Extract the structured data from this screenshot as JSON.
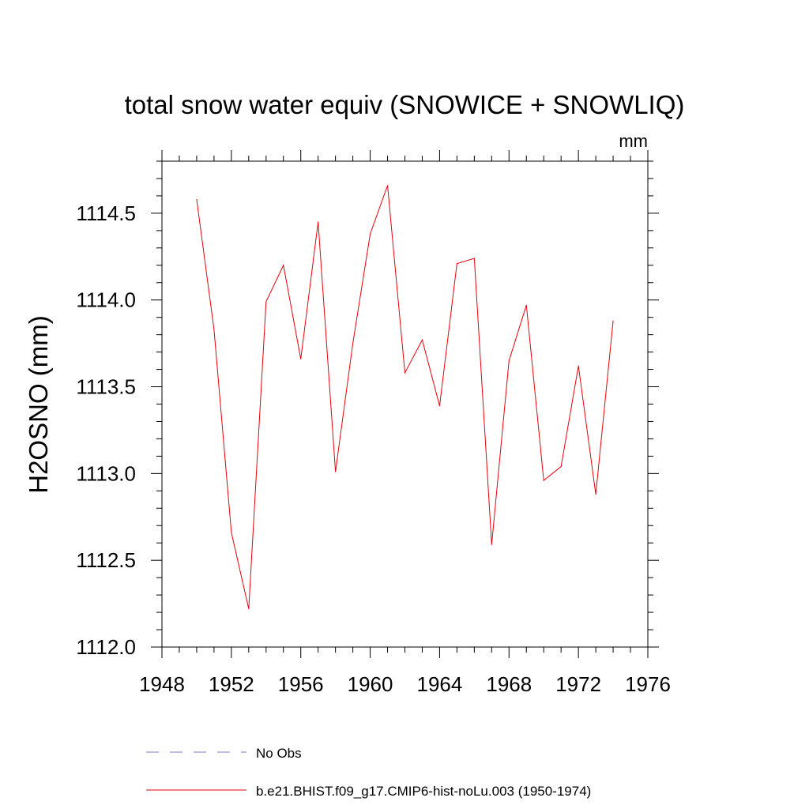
{
  "chart_data": {
    "type": "line",
    "title": "total snow water equiv (SNOWICE + SNOWLIQ)",
    "units": "mm",
    "ylabel": "H2OSNO  (mm)",
    "xlabel": "",
    "xlim": [
      1948,
      1976
    ],
    "ylim": [
      1112.0,
      1114.8
    ],
    "xticks": [
      1948,
      1952,
      1956,
      1960,
      1964,
      1968,
      1972,
      1976
    ],
    "yticks": [
      1112.0,
      1112.5,
      1113.0,
      1113.5,
      1114.0,
      1114.5
    ],
    "ytick_labels": [
      "1112.0",
      "1112.5",
      "1113.0",
      "1113.5",
      "1114.0",
      "1114.5"
    ],
    "grid": false,
    "legend_position": "bottom",
    "series": [
      {
        "name": "b.e21.BHIST.f09_g17.CMIP6-hist-noLu.003 (1950-1974)",
        "color": "#e8000b",
        "style": "solid",
        "x": [
          1950,
          1951,
          1952,
          1953,
          1954,
          1955,
          1956,
          1957,
          1958,
          1959,
          1960,
          1961,
          1962,
          1963,
          1964,
          1965,
          1966,
          1967,
          1968,
          1969,
          1970,
          1971,
          1972,
          1973,
          1974
        ],
        "values": [
          1114.58,
          1113.83,
          1112.66,
          1112.22,
          1113.99,
          1114.2,
          1113.66,
          1114.45,
          1113.01,
          1113.75,
          1114.38,
          1114.66,
          1113.58,
          1113.77,
          1113.39,
          1114.21,
          1114.24,
          1112.59,
          1113.65,
          1113.97,
          1112.96,
          1113.04,
          1113.62,
          1112.88,
          1113.88
        ]
      }
    ],
    "legend": [
      {
        "label": "No Obs",
        "color": "#7b7bd0",
        "style": "dashed"
      },
      {
        "label": "b.e21.BHIST.f09_g17.CMIP6-hist-noLu.003 (1950-1974)",
        "color": "#e8000b",
        "style": "solid"
      }
    ]
  }
}
